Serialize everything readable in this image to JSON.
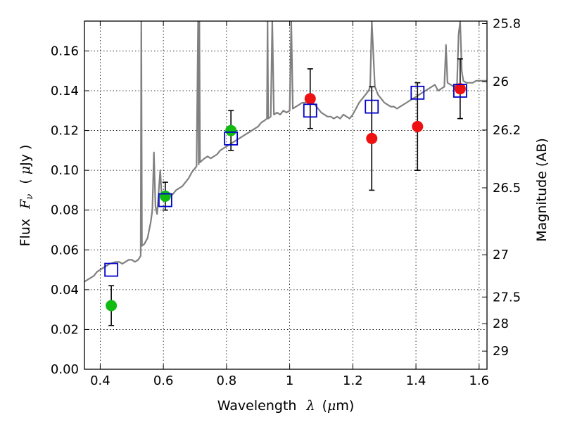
{
  "chart_data": {
    "type": "scatter",
    "xlabel_prefix": "Wavelength",
    "xlabel_symbol": "λ",
    "xlabel_unit_open": "(",
    "xlabel_unit_mu": "μ",
    "xlabel_unit_rest": "m)",
    "ylabel_prefix": "Flux",
    "ylabel_symbol": "F",
    "ylabel_sub": "ν",
    "ylabel_unit_open": "(",
    "ylabel_unit_mu": "μ",
    "ylabel_unit_rest": "Jy",
    "ylabel_unit_close": ")",
    "y2label": "Magnitude (AB)",
    "xlim": [
      0.35,
      1.625
    ],
    "ylim": [
      0.0,
      0.175
    ],
    "grid": true,
    "legend": "none",
    "x_ticks": [
      0.4,
      0.6,
      0.8,
      1.0,
      1.2,
      1.4,
      1.6
    ],
    "x_tick_labels": [
      "0.4",
      "0.6",
      "0.8",
      "1",
      "1.2",
      "1.4",
      "1.6"
    ],
    "y_ticks": [
      0.0,
      0.02,
      0.04,
      0.06,
      0.08,
      0.1,
      0.12,
      0.14,
      0.16
    ],
    "y_tick_labels": [
      "0.00",
      "0.02",
      "0.04",
      "0.06",
      "0.08",
      "0.10",
      "0.12",
      "0.14",
      "0.16"
    ],
    "y2_ticks": [
      {
        "label": "25.8",
        "mag": 25.8
      },
      {
        "label": "26",
        "mag": 26.0
      },
      {
        "label": "26.2",
        "mag": 26.2
      },
      {
        "label": "26.5",
        "mag": 26.5
      },
      {
        "label": "27",
        "mag": 27.0
      },
      {
        "label": "27.5",
        "mag": 27.5
      },
      {
        "label": "28",
        "mag": 28.0
      },
      {
        "label": "29",
        "mag": 29.0
      }
    ],
    "colors": {
      "model": "#808080",
      "model_photometry": "#0000cc",
      "optical": "#11bb11",
      "nir": "#ee1111",
      "errorbar": "#000000"
    },
    "model_spectrum": [
      [
        0.35,
        0.044
      ],
      [
        0.36,
        0.045
      ],
      [
        0.37,
        0.046
      ],
      [
        0.38,
        0.047
      ],
      [
        0.39,
        0.049
      ],
      [
        0.4,
        0.05
      ],
      [
        0.41,
        0.051
      ],
      [
        0.42,
        0.052
      ],
      [
        0.43,
        0.053
      ],
      [
        0.44,
        0.0535
      ],
      [
        0.45,
        0.054
      ],
      [
        0.46,
        0.054
      ],
      [
        0.47,
        0.053
      ],
      [
        0.48,
        0.054
      ],
      [
        0.49,
        0.055
      ],
      [
        0.5,
        0.055
      ],
      [
        0.51,
        0.054
      ],
      [
        0.52,
        0.055
      ],
      [
        0.528,
        0.057
      ],
      [
        0.53,
        0.175
      ],
      [
        0.532,
        0.062
      ],
      [
        0.54,
        0.063
      ],
      [
        0.55,
        0.066
      ],
      [
        0.56,
        0.074
      ],
      [
        0.565,
        0.08
      ],
      [
        0.57,
        0.109
      ],
      [
        0.575,
        0.082
      ],
      [
        0.58,
        0.078
      ],
      [
        0.59,
        0.1
      ],
      [
        0.595,
        0.086
      ],
      [
        0.6,
        0.087
      ],
      [
        0.61,
        0.086
      ],
      [
        0.62,
        0.087
      ],
      [
        0.63,
        0.088
      ],
      [
        0.64,
        0.09
      ],
      [
        0.65,
        0.091
      ],
      [
        0.66,
        0.092
      ],
      [
        0.67,
        0.094
      ],
      [
        0.68,
        0.096
      ],
      [
        0.69,
        0.099
      ],
      [
        0.7,
        0.101
      ],
      [
        0.705,
        0.102
      ],
      [
        0.71,
        0.175
      ],
      [
        0.712,
        0.103
      ],
      [
        0.714,
        0.175
      ],
      [
        0.716,
        0.104
      ],
      [
        0.73,
        0.106
      ],
      [
        0.74,
        0.107
      ],
      [
        0.75,
        0.106
      ],
      [
        0.76,
        0.107
      ],
      [
        0.77,
        0.108
      ],
      [
        0.78,
        0.11
      ],
      [
        0.79,
        0.111
      ],
      [
        0.8,
        0.112
      ],
      [
        0.81,
        0.113
      ],
      [
        0.82,
        0.114
      ],
      [
        0.83,
        0.115
      ],
      [
        0.84,
        0.116
      ],
      [
        0.85,
        0.117
      ],
      [
        0.86,
        0.118
      ],
      [
        0.87,
        0.119
      ],
      [
        0.88,
        0.12
      ],
      [
        0.89,
        0.121
      ],
      [
        0.9,
        0.122
      ],
      [
        0.91,
        0.124
      ],
      [
        0.92,
        0.125
      ],
      [
        0.928,
        0.126
      ],
      [
        0.93,
        0.175
      ],
      [
        0.932,
        0.126
      ],
      [
        0.94,
        0.127
      ],
      [
        0.945,
        0.175
      ],
      [
        0.95,
        0.128
      ],
      [
        0.96,
        0.129
      ],
      [
        0.97,
        0.128
      ],
      [
        0.98,
        0.13
      ],
      [
        0.99,
        0.129
      ],
      [
        1.0,
        0.13
      ],
      [
        1.005,
        0.175
      ],
      [
        1.01,
        0.131
      ],
      [
        1.02,
        0.132
      ],
      [
        1.03,
        0.133
      ],
      [
        1.04,
        0.134
      ],
      [
        1.05,
        0.134
      ],
      [
        1.06,
        0.135
      ],
      [
        1.07,
        0.134
      ],
      [
        1.08,
        0.133
      ],
      [
        1.09,
        0.131
      ],
      [
        1.1,
        0.129
      ],
      [
        1.11,
        0.128
      ],
      [
        1.12,
        0.127
      ],
      [
        1.13,
        0.127
      ],
      [
        1.14,
        0.126
      ],
      [
        1.15,
        0.127
      ],
      [
        1.16,
        0.126
      ],
      [
        1.17,
        0.128
      ],
      [
        1.18,
        0.127
      ],
      [
        1.19,
        0.126
      ],
      [
        1.2,
        0.128
      ],
      [
        1.21,
        0.131
      ],
      [
        1.22,
        0.134
      ],
      [
        1.23,
        0.136
      ],
      [
        1.24,
        0.138
      ],
      [
        1.25,
        0.14
      ],
      [
        1.255,
        0.142
      ],
      [
        1.26,
        0.175
      ],
      [
        1.27,
        0.142
      ],
      [
        1.28,
        0.138
      ],
      [
        1.29,
        0.136
      ],
      [
        1.3,
        0.134
      ],
      [
        1.31,
        0.133
      ],
      [
        1.32,
        0.132
      ],
      [
        1.33,
        0.132
      ],
      [
        1.34,
        0.131
      ],
      [
        1.35,
        0.132
      ],
      [
        1.36,
        0.133
      ],
      [
        1.37,
        0.134
      ],
      [
        1.38,
        0.135
      ],
      [
        1.39,
        0.136
      ],
      [
        1.4,
        0.137
      ],
      [
        1.41,
        0.138
      ],
      [
        1.42,
        0.139
      ],
      [
        1.43,
        0.14
      ],
      [
        1.44,
        0.141
      ],
      [
        1.45,
        0.142
      ],
      [
        1.46,
        0.143
      ],
      [
        1.47,
        0.14
      ],
      [
        1.48,
        0.141
      ],
      [
        1.49,
        0.142
      ],
      [
        1.495,
        0.163
      ],
      [
        1.5,
        0.144
      ],
      [
        1.51,
        0.143
      ],
      [
        1.52,
        0.142
      ],
      [
        1.53,
        0.143
      ],
      [
        1.535,
        0.168
      ],
      [
        1.54,
        0.175
      ],
      [
        1.545,
        0.15
      ],
      [
        1.55,
        0.145
      ],
      [
        1.56,
        0.144
      ],
      [
        1.57,
        0.144
      ],
      [
        1.58,
        0.144
      ],
      [
        1.59,
        0.145
      ],
      [
        1.6,
        0.145
      ],
      [
        1.625,
        0.145
      ]
    ],
    "model_photometry": [
      {
        "x": 0.435,
        "y": 0.05
      },
      {
        "x": 0.606,
        "y": 0.085
      },
      {
        "x": 0.814,
        "y": 0.116
      },
      {
        "x": 1.065,
        "y": 0.13
      },
      {
        "x": 1.26,
        "y": 0.132
      },
      {
        "x": 1.405,
        "y": 0.139
      },
      {
        "x": 1.54,
        "y": 0.14
      }
    ],
    "observed_optical": [
      {
        "x": 0.435,
        "y": 0.032,
        "err": 0.01
      },
      {
        "x": 0.606,
        "y": 0.087,
        "err": 0.007
      },
      {
        "x": 0.814,
        "y": 0.12,
        "err": 0.01
      }
    ],
    "observed_nir": [
      {
        "x": 1.065,
        "y": 0.136,
        "err": 0.015
      },
      {
        "x": 1.26,
        "y": 0.116,
        "err": 0.026
      },
      {
        "x": 1.405,
        "y": 0.122,
        "err": 0.022
      },
      {
        "x": 1.54,
        "y": 0.141,
        "err": 0.015
      }
    ]
  }
}
